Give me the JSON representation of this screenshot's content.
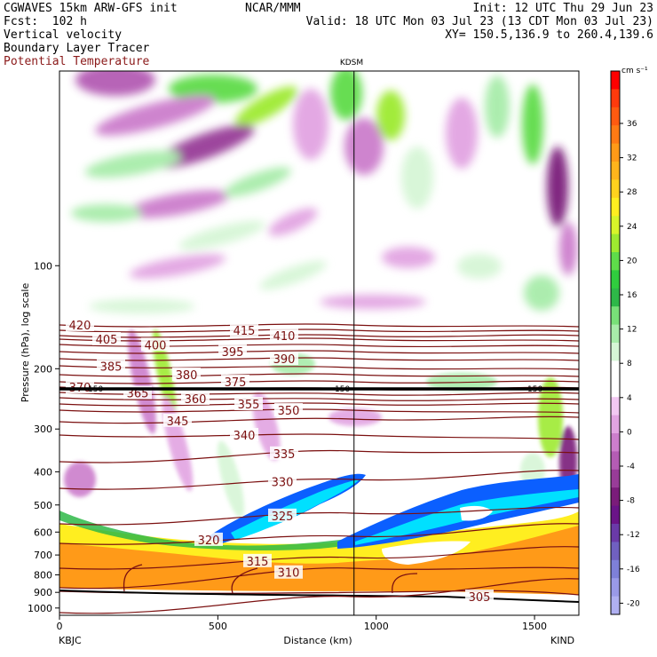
{
  "header": {
    "line1_left": "CGWAVES 15km ARW-GFS init",
    "line1_mid": "NCAR/MMM",
    "line1_right": "Init: 12 UTC Thu 29 Jun 23",
    "line2_left": "Fcst:  102 h",
    "line2_right": "Valid: 18 UTC Mon 03 Jul 23 (13 CDT Mon 03 Jul 23)",
    "line3_left": "Vertical velocity",
    "line3_right": "XY= 150.5,136.9 to 260.4,139.6",
    "line4_left": "Boundary Layer Tracer",
    "line5_left": "Potential Temperature"
  },
  "chart_data": {
    "type": "heatmap",
    "title": "",
    "xlabel": "Distance (km)",
    "ylabel": "Pressure (hPa), log scale",
    "x_ticks": [
      0,
      500,
      1000,
      1500
    ],
    "xlim": [
      0,
      1640
    ],
    "y_ticks": [
      100,
      200,
      300,
      400,
      500,
      600,
      700,
      800,
      900,
      1000
    ],
    "ylim": [
      1050,
      27
    ],
    "y_scale": "log",
    "left_station": "KBJC",
    "right_station": "KIND",
    "marker_station": "KDSM",
    "marker_x": 930,
    "marker_label": "150",
    "colorbar": {
      "unit": "cm s⁻¹",
      "ticks": [
        "36",
        "32",
        "28",
        "24",
        "20",
        "16",
        "12",
        "8",
        "4",
        "0",
        "-4",
        "-8",
        "-12",
        "-16",
        "-20"
      ],
      "colors": [
        "#ff0000",
        "#ff3a0c",
        "#ff5a10",
        "#ff7a14",
        "#ff9a18",
        "#ffb41c",
        "#ffd21e",
        "#ffee20",
        "#d8f52a",
        "#9eea30",
        "#5edc4a",
        "#30cd3e",
        "#2eb848",
        "#78e078",
        "#a8ecaa",
        "#d6f6d6",
        "#ffffff",
        "#ffffff",
        "#f2c8f2",
        "#e2a4e2",
        "#cc7ecc",
        "#b45cb4",
        "#983c98",
        "#7a1c7a",
        "#6a1488",
        "#6a3aa8",
        "#7060c0",
        "#7e80d8",
        "#9a9ae8",
        "#b0b0f2"
      ]
    },
    "theta_isentropes_K": [
      305,
      310,
      315,
      320,
      325,
      330,
      335,
      340,
      345,
      350,
      355,
      360,
      365,
      370,
      375,
      380,
      385,
      390,
      395,
      400,
      405,
      410,
      415,
      420
    ]
  }
}
